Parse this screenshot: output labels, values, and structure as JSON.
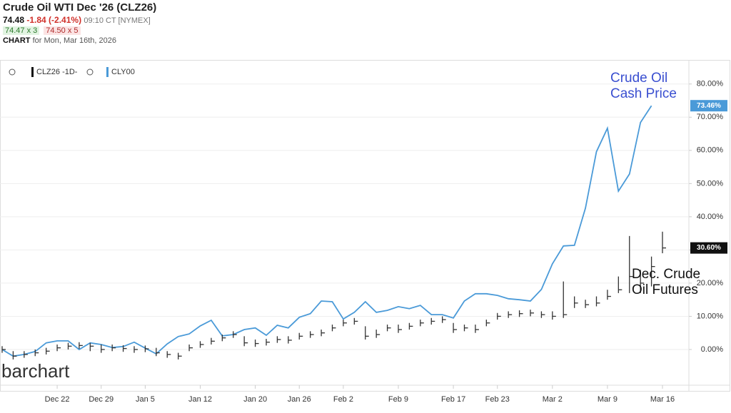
{
  "header": {
    "title": "Crude Oil WTI Dec '26 (CLZ26)",
    "last": "74.48",
    "change": "-1.84 (-2.41%)",
    "time": "09:10 CT [NYMEX]",
    "bid": "74.47 x 3",
    "ask": "74.50 x 5",
    "chart_label": "CHART",
    "chart_date": "for Mon, Mar 16th, 2026"
  },
  "chart_data": {
    "type": "line",
    "categories": [
      null,
      null,
      null,
      null,
      null,
      "Dec 22",
      null,
      null,
      null,
      "Dec 29",
      null,
      null,
      null,
      "Jan 5",
      null,
      null,
      null,
      null,
      "Jan 12",
      null,
      null,
      null,
      null,
      "Jan 20",
      null,
      null,
      null,
      "Jan 26",
      null,
      null,
      null,
      "Feb 2",
      null,
      null,
      null,
      null,
      "Feb 9",
      null,
      null,
      null,
      null,
      "Feb 17",
      null,
      null,
      null,
      "Feb 23",
      null,
      null,
      null,
      null,
      "Mar 2",
      null,
      null,
      null,
      null,
      "Mar 9",
      null,
      null,
      null,
      null,
      "Mar 16"
    ],
    "series": [
      {
        "name": "CLY00",
        "color": "#4a9ad8",
        "values": [
          0,
          -2,
          -1.5,
          -0.6,
          2,
          2.6,
          2.6,
          0,
          2,
          1.5,
          0.6,
          0.9,
          2.2,
          0.4,
          -1.3,
          1.7,
          3.9,
          4.7,
          7.1,
          8.8,
          4.1,
          4.5,
          6,
          6.5,
          4.3,
          7.3,
          6.5,
          9.7,
          10.8,
          14.6,
          14.4,
          9.2,
          11.2,
          14.4,
          11.2,
          11.8,
          12.9,
          12.3,
          13.3,
          10.5,
          10.5,
          9.5,
          14.6,
          16.8,
          16.8,
          16.3,
          15.3,
          15,
          14.6,
          18.1,
          25.8,
          31.2,
          31.4,
          42.6,
          59.6,
          66.7,
          47.7,
          52.9,
          68.4,
          73.46,
          null
        ],
        "last_label": "73.46%"
      },
      {
        "name": "CLZ26 -1D-",
        "color": "#333333",
        "style": "hlc",
        "close": [
          0,
          -2,
          -1.5,
          -1,
          -0.5,
          0.5,
          1,
          1.2,
          1,
          0,
          0.5,
          0.3,
          0,
          0.2,
          -1,
          -1.5,
          -2,
          0.5,
          1.5,
          2.5,
          3.5,
          4.5,
          2,
          1.8,
          2.2,
          3,
          2.8,
          4,
          4.5,
          5,
          6.5,
          8,
          8.5,
          4,
          4.5,
          6.5,
          6,
          7,
          8,
          8.5,
          9,
          6,
          6.5,
          6,
          8,
          10,
          10.5,
          10.8,
          11,
          10.5,
          10,
          10.5,
          14,
          13.5,
          14,
          16,
          18,
          22,
          20,
          25,
          30.6
        ],
        "high": [
          1,
          -0.5,
          -0.5,
          0,
          0.5,
          1.5,
          2,
          2.2,
          2,
          1.5,
          1.5,
          1.3,
          1,
          1.2,
          0.5,
          -0.5,
          -1,
          1.5,
          2.5,
          3.5,
          4.5,
          5.5,
          4,
          3,
          3.2,
          4,
          4,
          5,
          5.5,
          6,
          7.5,
          9,
          9.5,
          7,
          6,
          7.5,
          7.5,
          8,
          9,
          9.5,
          10,
          8,
          7.5,
          7.5,
          9,
          11,
          11.5,
          11.8,
          12,
          11.5,
          11.5,
          20.5,
          16,
          15,
          16,
          18,
          22,
          34.2,
          24,
          28,
          35.5
        ],
        "low": [
          -1,
          -3,
          -2.5,
          -2,
          -1.5,
          -0.5,
          0,
          0.2,
          -0.5,
          -1,
          -0.5,
          -0.7,
          -1,
          -0.8,
          -2,
          -2.5,
          -3,
          -0.5,
          0.5,
          1.5,
          2.5,
          3.5,
          1,
          0.8,
          1.2,
          2,
          1.8,
          3,
          3.5,
          4,
          5.5,
          7,
          7.5,
          3,
          3.5,
          5.5,
          5,
          6,
          7,
          7.5,
          8,
          5,
          5.5,
          5,
          7,
          9,
          9.5,
          9.8,
          10,
          9.5,
          9,
          9.5,
          12.5,
          12.5,
          13,
          15,
          17,
          17,
          17,
          19,
          29
        ]
      }
    ],
    "annotations": [
      {
        "lines": [
          "Crude Oil",
          "Cash Price"
        ],
        "color": "#3a4fd0"
      },
      {
        "lines": [
          "Dec. Crude",
          "Oil Futures"
        ],
        "color": "#111111"
      }
    ],
    "watermark": "barchart",
    "ylim": [
      -11.4,
      86.4
    ],
    "yticks": [
      {
        "value": 0,
        "label": "0.00%"
      },
      {
        "value": 10,
        "label": "10.00%"
      },
      {
        "value": 20,
        "label": "20.00%"
      },
      {
        "value": 30,
        "label": "30.00%"
      },
      {
        "value": 40,
        "label": "40.00%"
      },
      {
        "value": 50,
        "label": "50.00%"
      },
      {
        "value": 60,
        "label": "60.00%"
      },
      {
        "value": 70,
        "label": "70.00%"
      },
      {
        "value": 80,
        "label": "80.00%"
      }
    ],
    "grid": true,
    "futures_last_label": "30.60%"
  }
}
